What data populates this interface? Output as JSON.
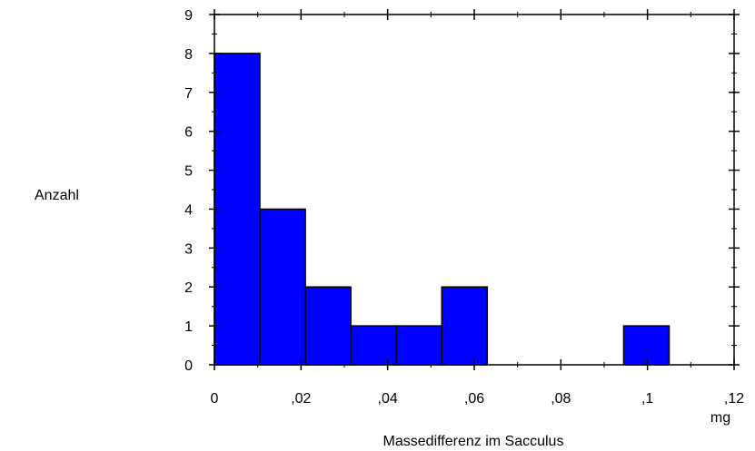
{
  "chart_data": {
    "type": "bar",
    "subtype": "histogram",
    "title": "",
    "xlabel": "Massedifferenz im Sacculus",
    "x_unit": "mg",
    "ylabel": "Anzahl",
    "xlim": [
      0,
      0.12
    ],
    "ylim": [
      0,
      9
    ],
    "bin_width": 0.0105,
    "bins": [
      {
        "start": 0.0,
        "end": 0.0105,
        "count": 8
      },
      {
        "start": 0.0105,
        "end": 0.021,
        "count": 4
      },
      {
        "start": 0.021,
        "end": 0.0315,
        "count": 2
      },
      {
        "start": 0.0315,
        "end": 0.042,
        "count": 1
      },
      {
        "start": 0.042,
        "end": 0.0525,
        "count": 1
      },
      {
        "start": 0.0525,
        "end": 0.063,
        "count": 2
      },
      {
        "start": 0.0945,
        "end": 0.105,
        "count": 1
      }
    ],
    "x_ticks": [
      {
        "value": 0,
        "label": "0"
      },
      {
        "value": 0.02,
        "label": ",02"
      },
      {
        "value": 0.04,
        "label": ",04"
      },
      {
        "value": 0.06,
        "label": ",06"
      },
      {
        "value": 0.08,
        "label": ",08"
      },
      {
        "value": 0.1,
        "label": ",1"
      },
      {
        "value": 0.12,
        "label": ",12"
      }
    ],
    "y_ticks": [
      {
        "value": 0,
        "label": "0"
      },
      {
        "value": 1,
        "label": "1"
      },
      {
        "value": 2,
        "label": "2"
      },
      {
        "value": 3,
        "label": "3"
      },
      {
        "value": 4,
        "label": "4"
      },
      {
        "value": 5,
        "label": "5"
      },
      {
        "value": 6,
        "label": "6"
      },
      {
        "value": 7,
        "label": "7"
      },
      {
        "value": 8,
        "label": "8"
      },
      {
        "value": 9,
        "label": "9"
      }
    ],
    "bar_color": "#0000ff",
    "edge_color": "#000000",
    "grid": false,
    "legend": "none"
  }
}
